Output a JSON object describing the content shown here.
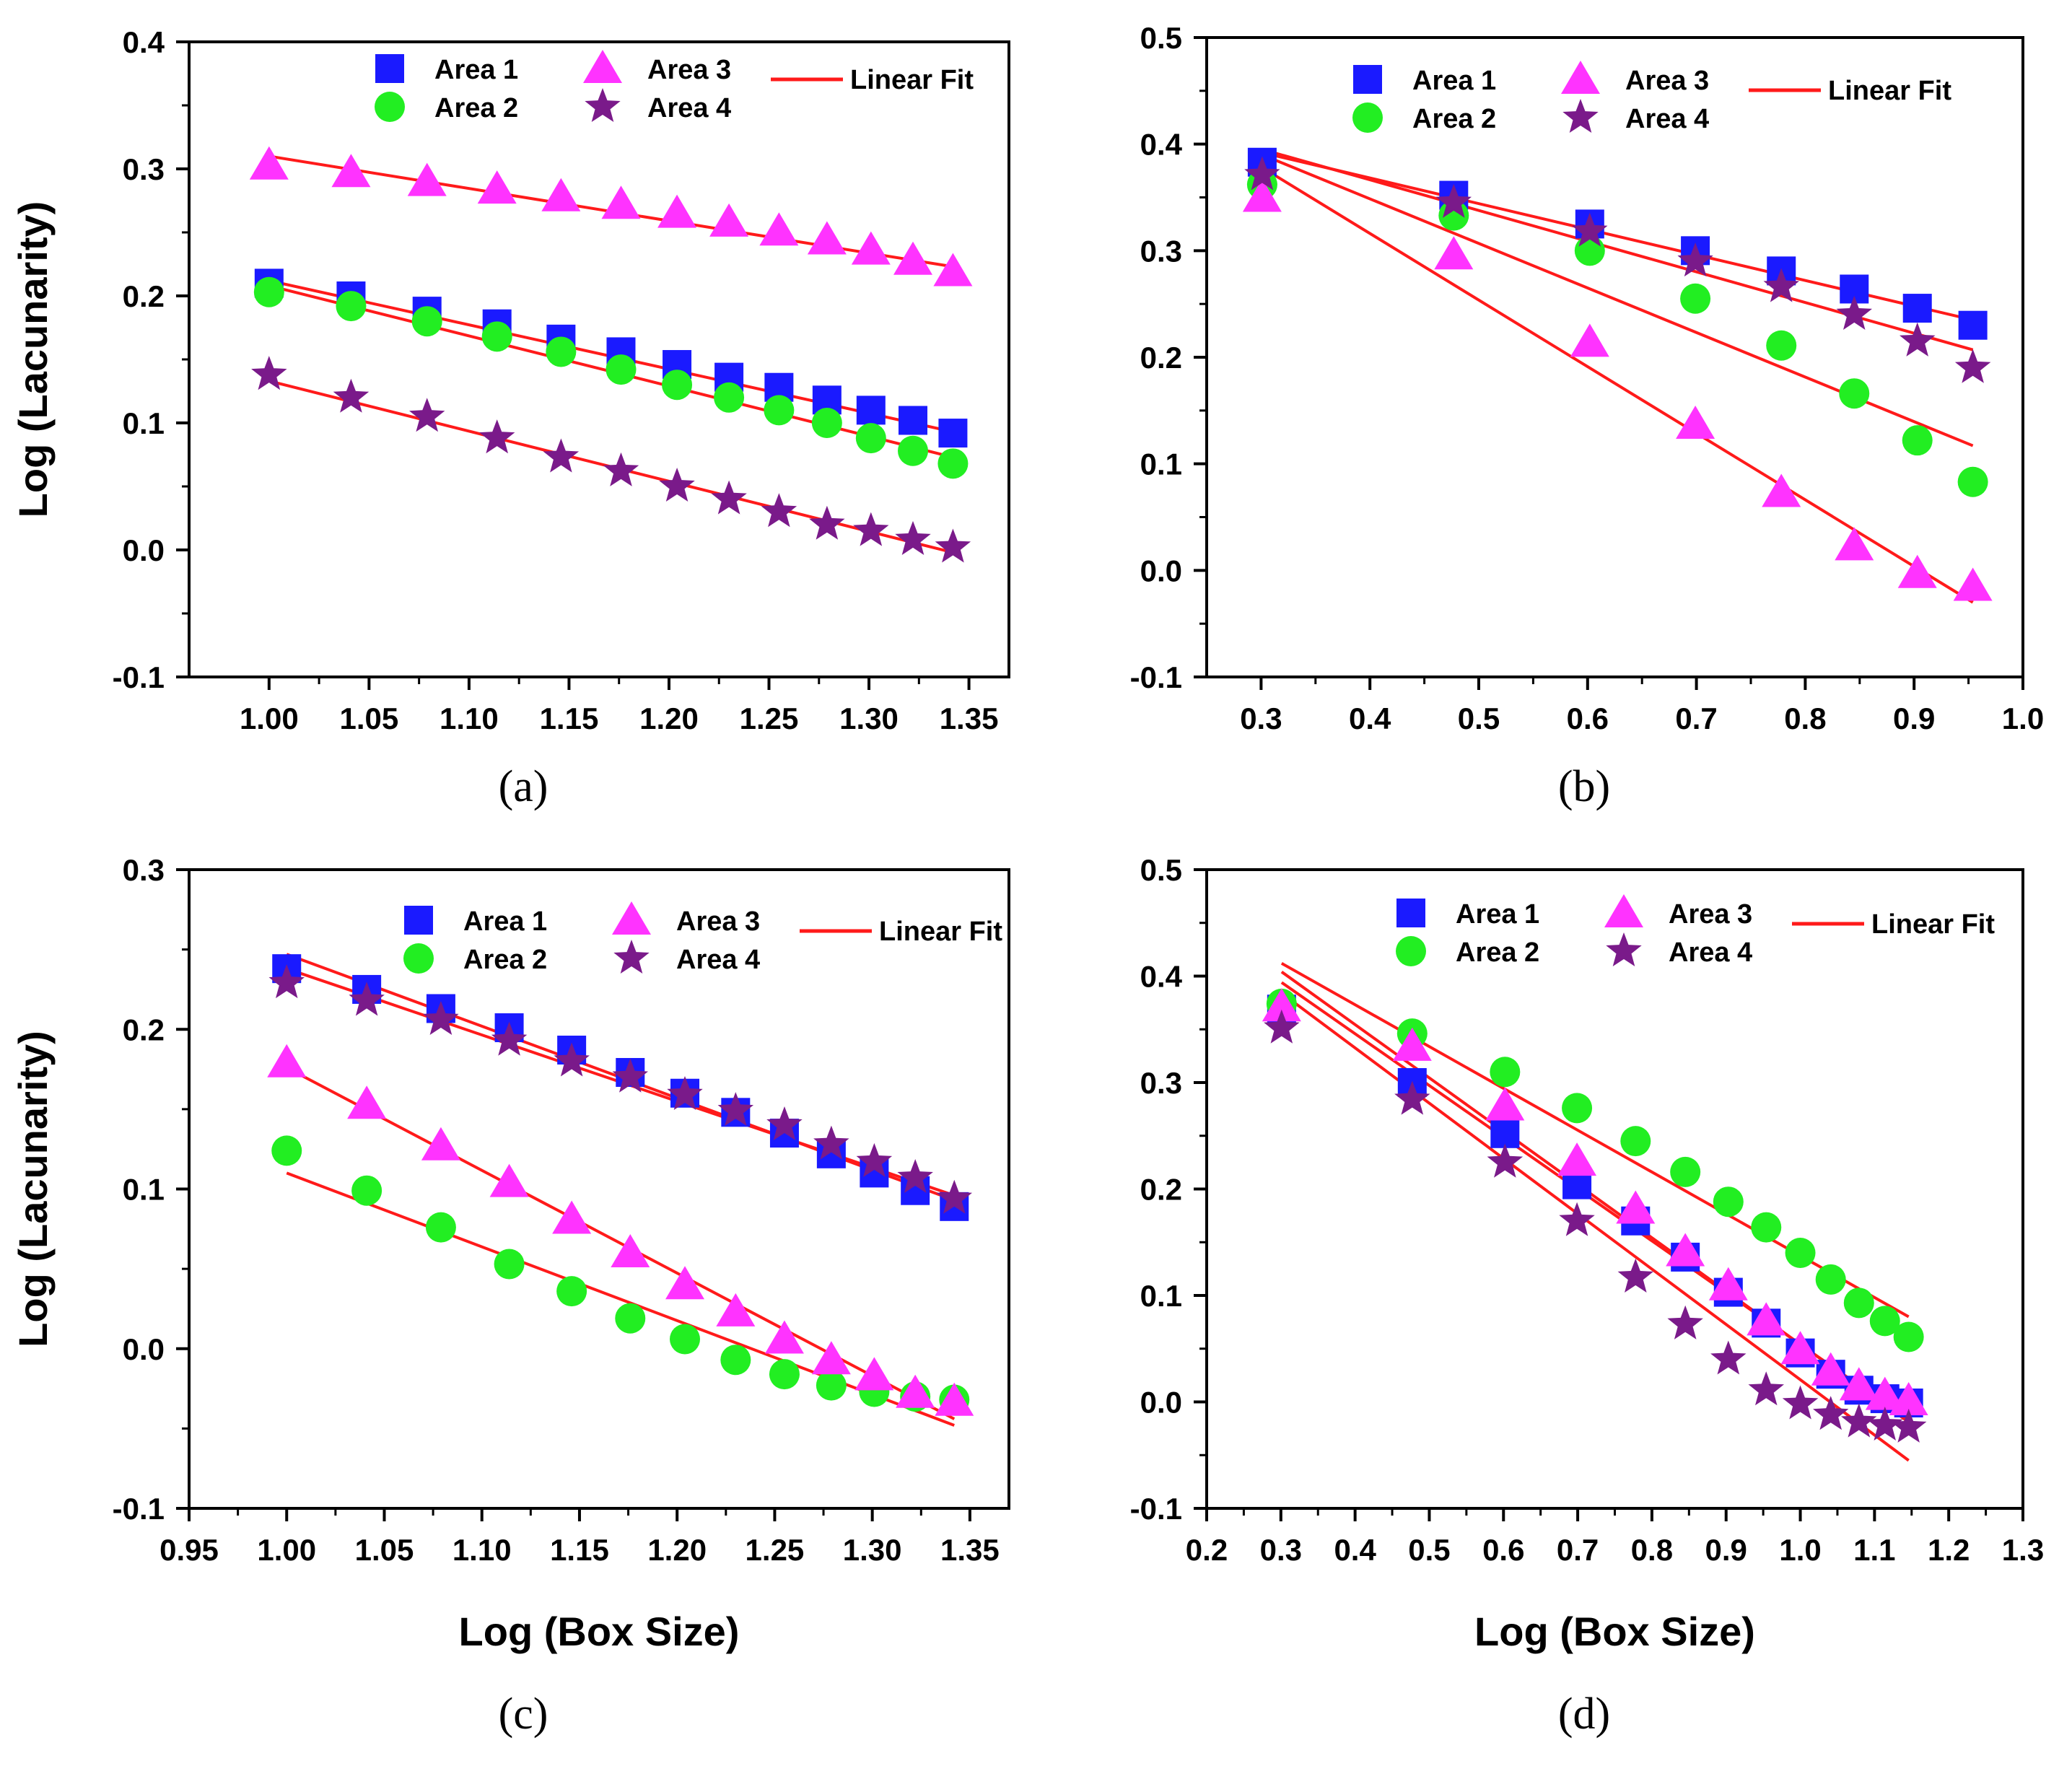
{
  "figure": {
    "panel_labels": [
      "(a)",
      "(b)",
      "(c)",
      "(d)"
    ]
  },
  "colors": {
    "area1": "#1a1aff",
    "area2": "#22ee22",
    "area3": "#ff33ff",
    "area4": "#7a1a8a",
    "fit": "#ff1a1a"
  },
  "chart_data": [
    {
      "type": "scatter",
      "panel": "(a)",
      "title": "",
      "xlabel": "",
      "ylabel": "Log (Lacunarity)",
      "xlim": [
        0.96,
        1.37
      ],
      "ylim": [
        -0.1,
        0.4
      ],
      "xticks": [
        1.0,
        1.05,
        1.1,
        1.15,
        1.2,
        1.25,
        1.3,
        1.35
      ],
      "xtick_labels": [
        "1.00",
        "1.05",
        "1.10",
        "1.15",
        "1.20",
        "1.25",
        "1.30",
        "1.35"
      ],
      "yticks": [
        -0.1,
        0.0,
        0.1,
        0.2,
        0.3,
        0.4
      ],
      "ytick_labels": [
        "-0.1",
        "0.0",
        "0.1",
        "0.2",
        "0.3",
        "0.4"
      ],
      "legend": {
        "placement": "top",
        "entries": [
          "Area 1",
          "Area 2",
          "Area 3",
          "Area 4",
          "Linear Fit"
        ]
      },
      "x": [
        1.0,
        1.041,
        1.079,
        1.114,
        1.146,
        1.176,
        1.204,
        1.23,
        1.255,
        1.279,
        1.301,
        1.322,
        1.342
      ],
      "series": [
        {
          "name": "Area 1",
          "marker": "square",
          "values": [
            0.21,
            0.2,
            0.188,
            0.178,
            0.166,
            0.156,
            0.146,
            0.136,
            0.128,
            0.118,
            0.11,
            0.102,
            0.092
          ],
          "fit": [
            0.212,
            0.093
          ]
        },
        {
          "name": "Area 2",
          "marker": "circle",
          "values": [
            0.203,
            0.192,
            0.18,
            0.168,
            0.156,
            0.142,
            0.13,
            0.12,
            0.11,
            0.1,
            0.088,
            0.078,
            0.068
          ],
          "fit": [
            0.208,
            0.073
          ]
        },
        {
          "name": "Area 3",
          "marker": "triangle",
          "values": [
            0.303,
            0.297,
            0.29,
            0.284,
            0.278,
            0.272,
            0.265,
            0.258,
            0.251,
            0.244,
            0.236,
            0.228,
            0.219
          ],
          "fit": [
            0.31,
            0.223
          ]
        },
        {
          "name": "Area 4",
          "marker": "star",
          "values": [
            0.138,
            0.12,
            0.105,
            0.088,
            0.073,
            0.062,
            0.05,
            0.04,
            0.03,
            0.02,
            0.015,
            0.008,
            0.002
          ],
          "fit": [
            0.133,
            -0.002
          ]
        }
      ]
    },
    {
      "type": "scatter",
      "panel": "(b)",
      "title": "",
      "xlabel": "",
      "ylabel": "",
      "xlim": [
        0.25,
        1.0
      ],
      "ylim": [
        -0.1,
        0.5
      ],
      "xticks": [
        0.3,
        0.4,
        0.5,
        0.6,
        0.7,
        0.8,
        0.9,
        1.0
      ],
      "xtick_labels": [
        "0.3",
        "0.4",
        "0.5",
        "0.6",
        "0.7",
        "0.8",
        "0.9",
        "1.0"
      ],
      "yticks": [
        -0.1,
        0.0,
        0.1,
        0.2,
        0.3,
        0.4,
        0.5
      ],
      "ytick_labels": [
        "-0.1",
        "0.0",
        "0.1",
        "0.2",
        "0.3",
        "0.4",
        "0.5"
      ],
      "legend": {
        "placement": "top",
        "entries": [
          "Area 1",
          "Area 2",
          "Area 3",
          "Area 4",
          "Linear Fit"
        ]
      },
      "x": [
        0.301,
        0.477,
        0.602,
        0.699,
        0.778,
        0.845,
        0.903,
        0.954
      ],
      "series": [
        {
          "name": "Area 1",
          "marker": "square",
          "values": [
            0.383,
            0.352,
            0.325,
            0.3,
            0.281,
            0.264,
            0.246,
            0.23
          ],
          "fit": [
            0.392,
            0.235
          ]
        },
        {
          "name": "Area 2",
          "marker": "circle",
          "values": [
            0.362,
            0.333,
            0.3,
            0.255,
            0.211,
            0.166,
            0.122,
            0.083
          ],
          "fit": [
            0.39,
            0.117
          ]
        },
        {
          "name": "Area 3",
          "marker": "triangle",
          "values": [
            0.35,
            0.296,
            0.214,
            0.137,
            0.073,
            0.023,
            -0.003,
            -0.015
          ],
          "fit": [
            0.378,
            -0.03
          ]
        },
        {
          "name": "Area 4",
          "marker": "star",
          "values": [
            0.371,
            0.345,
            0.318,
            0.29,
            0.266,
            0.24,
            0.215,
            0.19
          ],
          "fit": [
            0.395,
            0.207
          ]
        }
      ]
    },
    {
      "type": "scatter",
      "panel": "(c)",
      "title": "",
      "xlabel": "Log (Box Size)",
      "ylabel": "Log (Lacunarity)",
      "xlim": [
        0.95,
        1.37
      ],
      "ylim": [
        -0.1,
        0.3
      ],
      "xticks": [
        0.95,
        1.0,
        1.05,
        1.1,
        1.15,
        1.2,
        1.25,
        1.3,
        1.35
      ],
      "xtick_labels": [
        "0.95",
        "1.00",
        "1.05",
        "1.10",
        "1.15",
        "1.20",
        "1.25",
        "1.30",
        "1.35"
      ],
      "yticks": [
        -0.1,
        0.0,
        0.1,
        0.2,
        0.3
      ],
      "ytick_labels": [
        "-0.1",
        "0.0",
        "0.1",
        "0.2",
        "0.3"
      ],
      "legend": {
        "placement": "top",
        "entries": [
          "Area 1",
          "Area 2",
          "Area 3",
          "Area 4",
          "Linear Fit"
        ]
      },
      "x": [
        1.0,
        1.041,
        1.079,
        1.114,
        1.146,
        1.176,
        1.204,
        1.23,
        1.255,
        1.279,
        1.301,
        1.322,
        1.342
      ],
      "series": [
        {
          "name": "Area 1",
          "marker": "square",
          "values": [
            0.238,
            0.225,
            0.213,
            0.201,
            0.187,
            0.173,
            0.16,
            0.148,
            0.135,
            0.122,
            0.11,
            0.099,
            0.089
          ],
          "fit": [
            0.247,
            0.093
          ]
        },
        {
          "name": "Area 2",
          "marker": "circle",
          "values": [
            0.124,
            0.099,
            0.076,
            0.053,
            0.036,
            0.019,
            0.006,
            -0.007,
            -0.016,
            -0.023,
            -0.027,
            -0.03,
            -0.032
          ],
          "fit": [
            0.11,
            -0.048
          ]
        },
        {
          "name": "Area 3",
          "marker": "triangle",
          "values": [
            0.179,
            0.153,
            0.127,
            0.104,
            0.081,
            0.06,
            0.04,
            0.023,
            0.006,
            -0.007,
            -0.017,
            -0.028,
            -0.033
          ],
          "fit": [
            0.176,
            -0.044
          ]
        },
        {
          "name": "Area 4",
          "marker": "star",
          "values": [
            0.229,
            0.218,
            0.206,
            0.193,
            0.18,
            0.17,
            0.159,
            0.149,
            0.14,
            0.128,
            0.117,
            0.107,
            0.094
          ],
          "fit": [
            0.238,
            0.096
          ]
        }
      ]
    },
    {
      "type": "scatter",
      "panel": "(d)",
      "title": "",
      "xlabel": "Log (Box Size)",
      "ylabel": "",
      "xlim": [
        0.2,
        1.3
      ],
      "ylim": [
        -0.1,
        0.5
      ],
      "xticks": [
        0.2,
        0.3,
        0.4,
        0.5,
        0.6,
        0.7,
        0.8,
        0.9,
        1.0,
        1.1,
        1.2,
        1.3
      ],
      "xtick_labels": [
        "0.2",
        "0.3",
        "0.4",
        "0.5",
        "0.6",
        "0.7",
        "0.8",
        "0.9",
        "1.0",
        "1.1",
        "1.2",
        "1.3"
      ],
      "yticks": [
        -0.1,
        0.0,
        0.1,
        0.2,
        0.3,
        0.4,
        0.5
      ],
      "ytick_labels": [
        "-0.1",
        "0.0",
        "0.1",
        "0.2",
        "0.3",
        "0.4",
        "0.5"
      ],
      "legend": {
        "placement": "top",
        "entries": [
          "Area 1",
          "Area 2",
          "Area 3",
          "Area 4",
          "Linear Fit"
        ]
      },
      "x": [
        0.301,
        0.477,
        0.602,
        0.699,
        0.778,
        0.845,
        0.903,
        0.954,
        1.0,
        1.041,
        1.079,
        1.114,
        1.146
      ],
      "series": [
        {
          "name": "Area 1",
          "marker": "square",
          "values": [
            0.369,
            0.3,
            0.252,
            0.204,
            0.17,
            0.136,
            0.103,
            0.074,
            0.046,
            0.026,
            0.011,
            0.003,
            -0.001
          ],
          "fit": [
            0.394,
            -0.017
          ]
        },
        {
          "name": "Area 2",
          "marker": "circle",
          "values": [
            0.374,
            0.346,
            0.31,
            0.276,
            0.245,
            0.216,
            0.188,
            0.164,
            0.14,
            0.115,
            0.093,
            0.076,
            0.061
          ],
          "fit": [
            0.412,
            0.08
          ]
        },
        {
          "name": "Area 3",
          "marker": "triangle",
          "values": [
            0.371,
            0.334,
            0.278,
            0.226,
            0.181,
            0.141,
            0.109,
            0.076,
            0.049,
            0.029,
            0.015,
            0.006,
            0.001
          ],
          "fit": [
            0.404,
            -0.019
          ]
        },
        {
          "name": "Area 4",
          "marker": "star",
          "values": [
            0.351,
            0.284,
            0.225,
            0.17,
            0.117,
            0.073,
            0.04,
            0.011,
            -0.002,
            -0.012,
            -0.019,
            -0.022,
            -0.024
          ],
          "fit": [
            0.384,
            -0.055
          ]
        }
      ]
    }
  ]
}
